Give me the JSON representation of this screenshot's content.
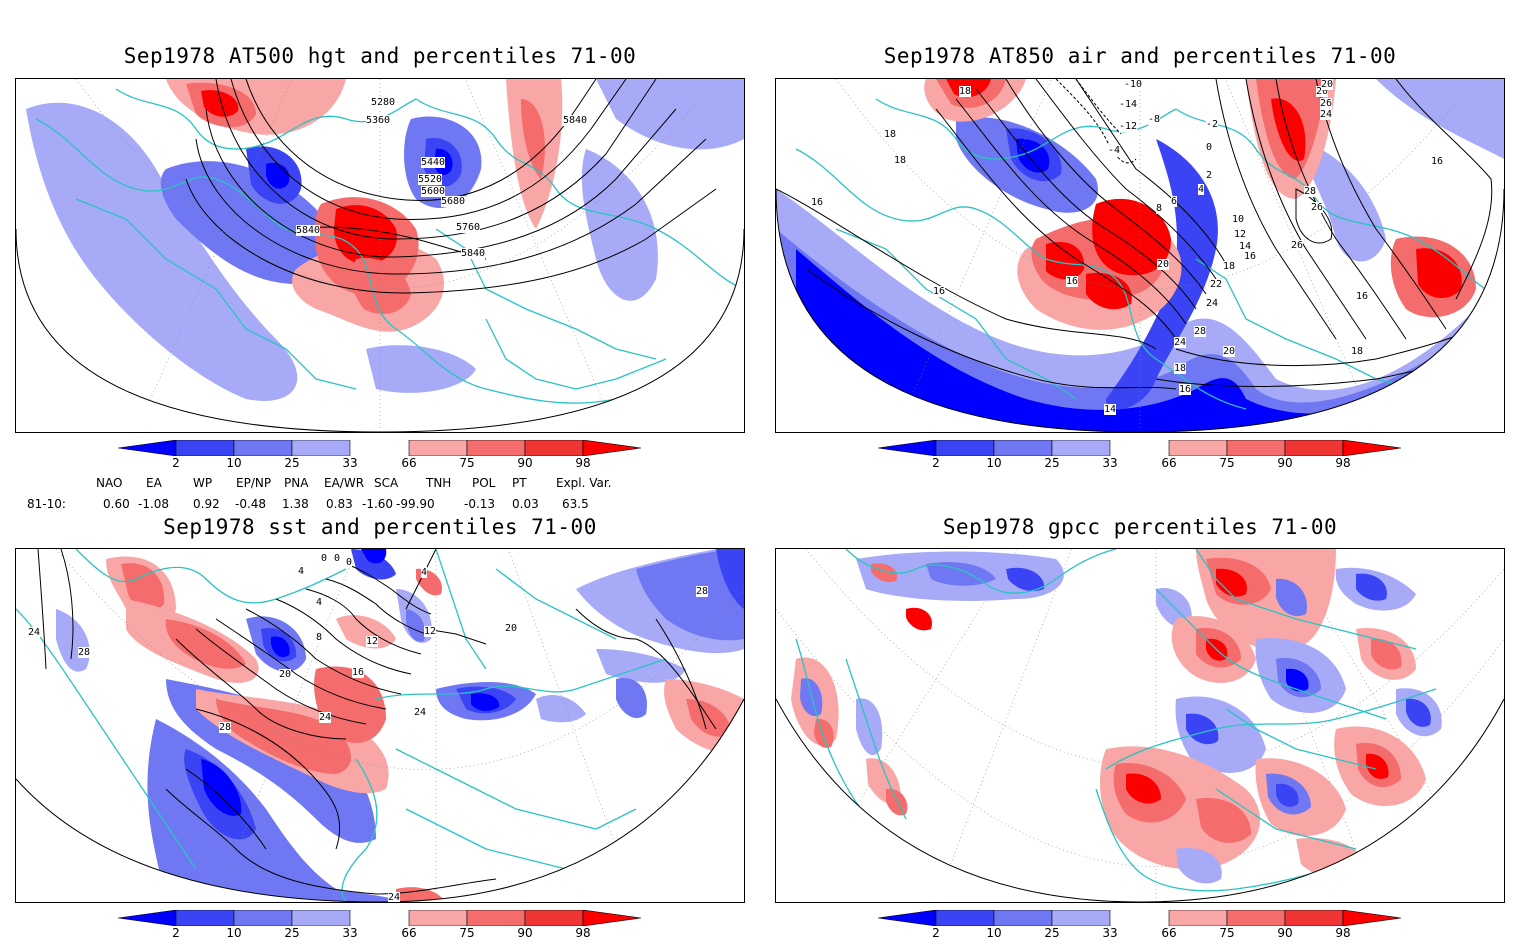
{
  "panels": [
    {
      "title": "Sep1978 AT500 hgt and percentiles 71-00",
      "contour_labels": [
        "5280",
        "5360",
        "5440",
        "5520",
        "5600",
        "5680",
        "5760",
        "5840",
        "5840",
        "5840"
      ]
    },
    {
      "title": "Sep1978 AT850 air and percentiles 71-00",
      "contour_labels": [
        "18",
        "18",
        "18",
        "16",
        "16",
        "16",
        "16",
        "16",
        "-10",
        "-14",
        "-12",
        "-8",
        "-2",
        "-4",
        "0",
        "2",
        "4",
        "6",
        "8",
        "10",
        "12",
        "14",
        "16",
        "18",
        "20",
        "22",
        "24",
        "26",
        "26",
        "28",
        "24",
        "20",
        "18",
        "16",
        "14",
        "20",
        "24",
        "26",
        "28",
        "18",
        "20"
      ]
    },
    {
      "title": "Sep1978 sst and percentiles 71-00",
      "contour_labels": [
        "24",
        "28",
        "4",
        "8",
        "12",
        "16",
        "20",
        "24",
        "28",
        "24",
        "20",
        "28",
        "24",
        "0",
        "0",
        "0",
        "4",
        "4",
        "12"
      ]
    },
    {
      "title": "Sep1978 gpcc percentiles 71-00",
      "contour_labels": []
    }
  ],
  "colorbar": {
    "labels": [
      "2",
      "10",
      "25",
      "33",
      "66",
      "75",
      "90",
      "98"
    ],
    "colors": {
      "c1": "#0000ff",
      "c2": "#3b44f5",
      "c3": "#6f78f2",
      "c4": "#a7abf7",
      "c5": "#f9a6a6",
      "c6": "#f46c6c",
      "c7": "#f03535",
      "c8": "#fa0000",
      "land": "#29c3c3"
    }
  },
  "indices": {
    "headers": [
      "NAO",
      "EA",
      "WP",
      "EP/NP",
      "PNA",
      "EA/WR",
      "SCA",
      "TNH",
      "POL",
      "PT",
      "Expl. Var."
    ],
    "row_label": "81-10:",
    "values": [
      "0.60",
      "-1.08",
      "0.92",
      "-0.48",
      "1.38",
      "0.83",
      "-1.60",
      "-99.90",
      "-0.13",
      "0.03",
      "63.5"
    ]
  }
}
